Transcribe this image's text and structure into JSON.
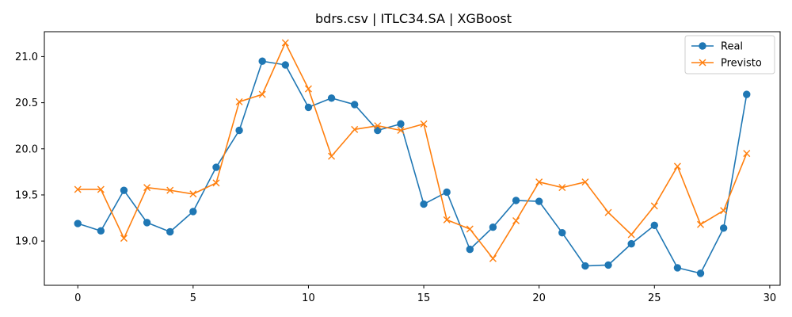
{
  "chart_data": {
    "type": "line",
    "title": "bdrs.csv | ITLC34.SA | XGBoost",
    "xlabel": "",
    "ylabel": "",
    "xlim": [
      -1.45,
      30.45
    ],
    "ylim": [
      18.52,
      21.27
    ],
    "xticks": [
      0,
      5,
      10,
      15,
      20,
      25,
      30
    ],
    "yticks": [
      19.0,
      19.5,
      20.0,
      20.5,
      21.0
    ],
    "ytick_labels": [
      "19.0",
      "19.5",
      "20.0",
      "20.5",
      "21.0"
    ],
    "grid": false,
    "legend_position": "top-right",
    "x": [
      0,
      1,
      2,
      3,
      4,
      5,
      6,
      7,
      8,
      9,
      10,
      11,
      12,
      13,
      14,
      15,
      16,
      17,
      18,
      19,
      20,
      21,
      22,
      23,
      24,
      25,
      26,
      27,
      28,
      29
    ],
    "series": [
      {
        "name": "Real",
        "color": "#1f77b4",
        "marker": "circle",
        "values": [
          19.19,
          19.11,
          19.55,
          19.2,
          19.1,
          19.32,
          19.8,
          20.2,
          20.95,
          20.91,
          20.45,
          20.55,
          20.48,
          20.2,
          20.27,
          19.4,
          19.53,
          18.91,
          19.15,
          19.44,
          19.43,
          19.09,
          18.73,
          18.74,
          18.97,
          19.17,
          18.71,
          18.65,
          19.14,
          20.59
        ]
      },
      {
        "name": "Previsto",
        "color": "#ff7f0e",
        "marker": "x",
        "values": [
          19.56,
          19.56,
          19.03,
          19.58,
          19.55,
          19.51,
          19.63,
          20.51,
          20.59,
          21.15,
          20.65,
          19.92,
          20.21,
          20.25,
          20.2,
          20.27,
          19.23,
          19.13,
          18.81,
          19.22,
          19.64,
          19.58,
          19.64,
          19.31,
          19.07,
          19.38,
          19.81,
          19.18,
          19.33,
          19.95
        ]
      }
    ]
  }
}
